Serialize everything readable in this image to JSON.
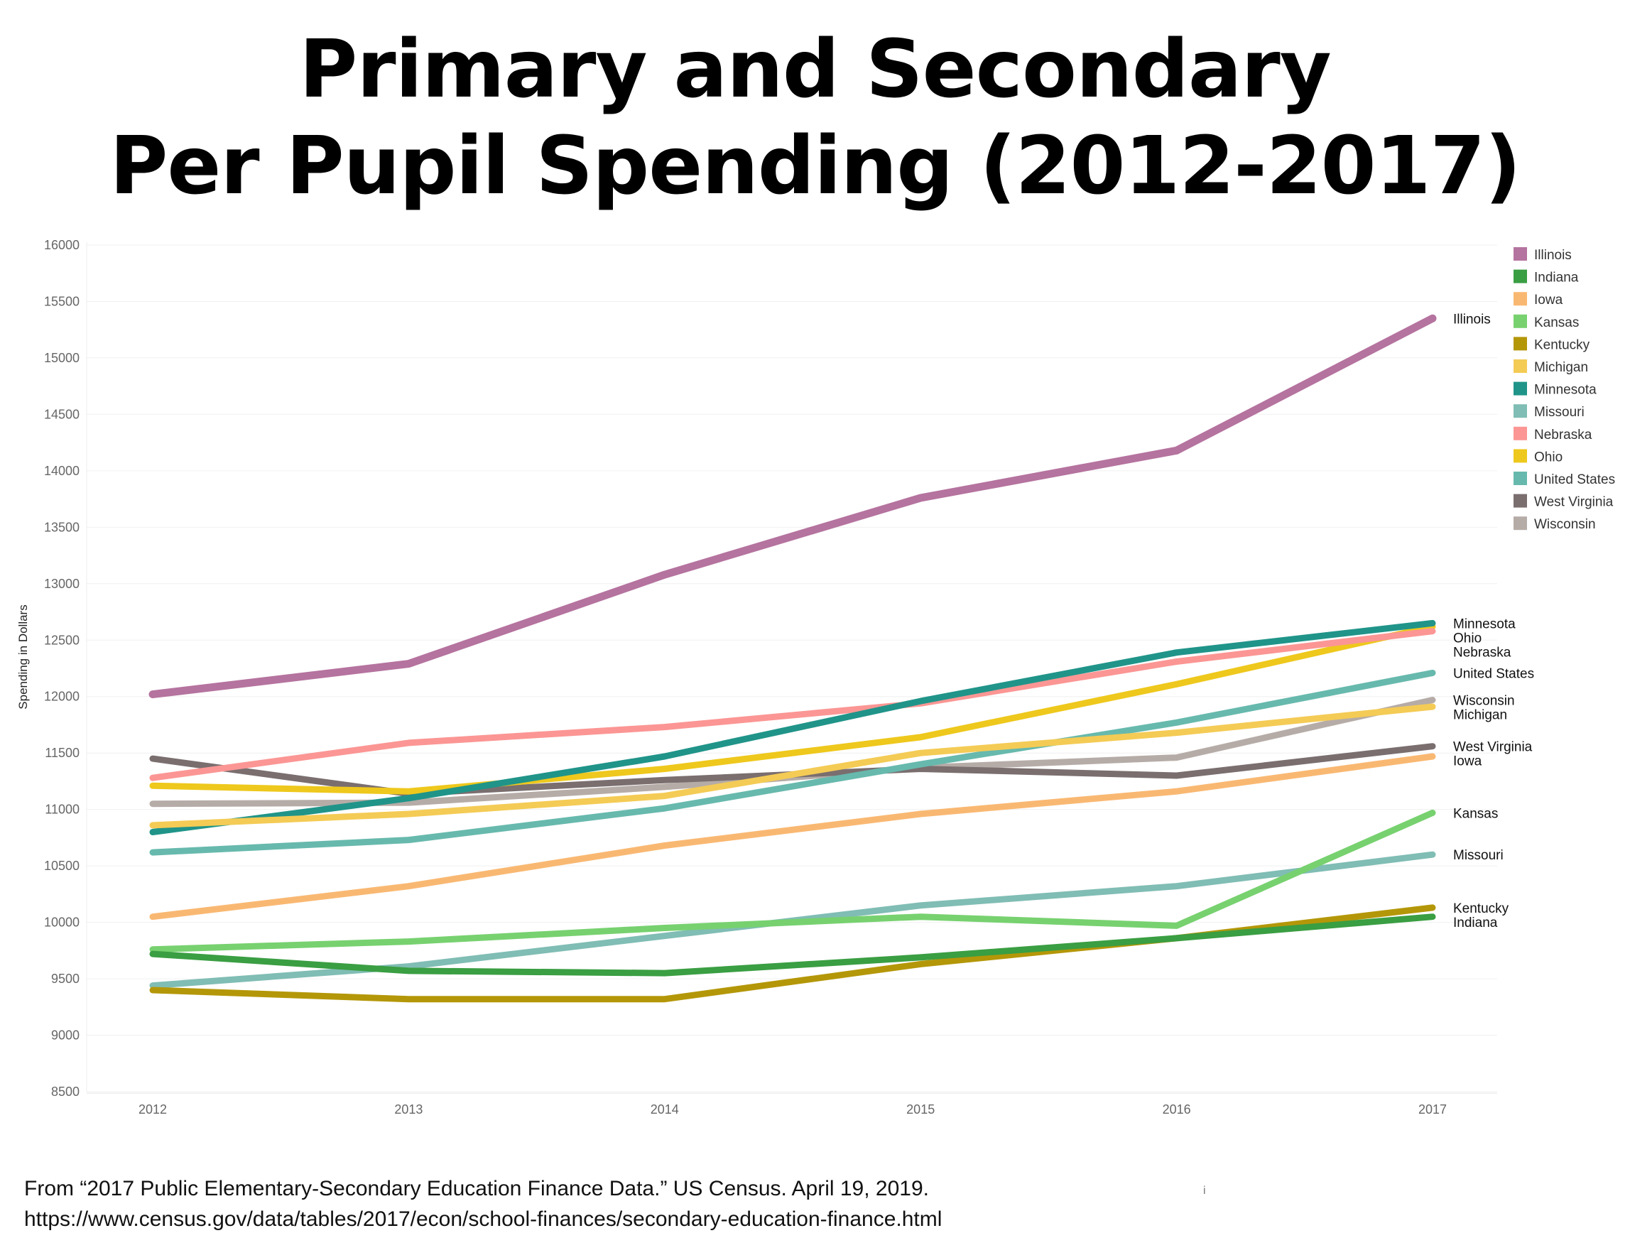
{
  "title_lines": [
    "Primary and Secondary",
    "Per Pupil Spending (2012-2017)"
  ],
  "source_lines": [
    "From “2017 Public Elementary-Secondary Education Finance Data.” US Census. April 19, 2019.",
    "https://www.census.gov/data/tables/2017/econ/school-finances/secondary-education-finance.html"
  ],
  "stray_mark": "i",
  "chart_data": {
    "type": "line",
    "title": "Primary and Secondary Per Pupil Spending (2012-2017)",
    "xlabel": "",
    "ylabel": "Spending in Dollars",
    "x": [
      "2012",
      "2013",
      "2014",
      "2015",
      "2016",
      "2017"
    ],
    "ylim": [
      8500,
      16000
    ],
    "yticks": [
      8500,
      9000,
      9500,
      10000,
      10500,
      11000,
      11500,
      12000,
      12500,
      13000,
      13500,
      14000,
      14500,
      15000,
      15500,
      16000
    ],
    "grid": true,
    "legend_position": "top-right",
    "series": [
      {
        "name": "Illinois",
        "color": "#b5739f",
        "values": [
          12020,
          12290,
          13080,
          13760,
          14180,
          15350
        ]
      },
      {
        "name": "Indiana",
        "color": "#3a9e42",
        "values": [
          9720,
          9570,
          9550,
          9690,
          9860,
          10050
        ]
      },
      {
        "name": "Iowa",
        "color": "#f9b872",
        "values": [
          10050,
          10320,
          10680,
          10960,
          11160,
          11470
        ]
      },
      {
        "name": "Kansas",
        "color": "#77d16f",
        "values": [
          9760,
          9830,
          9950,
          10050,
          9970,
          10970
        ]
      },
      {
        "name": "Kentucky",
        "color": "#b49708",
        "values": [
          9400,
          9320,
          9320,
          9630,
          9860,
          10130
        ]
      },
      {
        "name": "Michigan",
        "color": "#f4cb55",
        "values": [
          10860,
          10960,
          11120,
          11500,
          11680,
          11910
        ]
      },
      {
        "name": "Minnesota",
        "color": "#209489",
        "values": [
          10800,
          11100,
          11470,
          11960,
          12390,
          12650
        ]
      },
      {
        "name": "Missouri",
        "color": "#80bdb4",
        "values": [
          9440,
          9610,
          9880,
          10150,
          10320,
          10600
        ]
      },
      {
        "name": "Nebraska",
        "color": "#fb9694",
        "values": [
          11280,
          11590,
          11730,
          11940,
          12310,
          12580
        ]
      },
      {
        "name": "Ohio",
        "color": "#eec81c",
        "values": [
          11210,
          11160,
          11360,
          11640,
          12110,
          12620
        ]
      },
      {
        "name": "United States",
        "color": "#67b9ad",
        "values": [
          10620,
          10730,
          11010,
          11400,
          11770,
          12210
        ]
      },
      {
        "name": "West Virginia",
        "color": "#7a6e6f",
        "values": [
          11450,
          11140,
          11260,
          11360,
          11300,
          11560
        ]
      },
      {
        "name": "Wisconsin",
        "color": "#b6aca7",
        "values": [
          11050,
          11060,
          11200,
          11370,
          11460,
          11970
        ]
      }
    ],
    "end_labels": [
      {
        "series": "Illinois",
        "text": "Illinois"
      },
      {
        "series": "Minnesota",
        "text": "Minnesota"
      },
      {
        "series": "Ohio",
        "text": "Ohio"
      },
      {
        "series": "Nebraska",
        "text": "Nebraska"
      },
      {
        "series": "United States",
        "text": "United States"
      },
      {
        "series": "Wisconsin",
        "text": "Wisconsin"
      },
      {
        "series": "Michigan",
        "text": "Michigan"
      },
      {
        "series": "West Virginia",
        "text": "West Virginia"
      },
      {
        "series": "Iowa",
        "text": "Iowa"
      },
      {
        "series": "Kansas",
        "text": "Kansas"
      },
      {
        "series": "Missouri",
        "text": "Missouri"
      },
      {
        "series": "Kentucky",
        "text": "Kentucky"
      },
      {
        "series": "Indiana",
        "text": "Indiana"
      }
    ]
  }
}
